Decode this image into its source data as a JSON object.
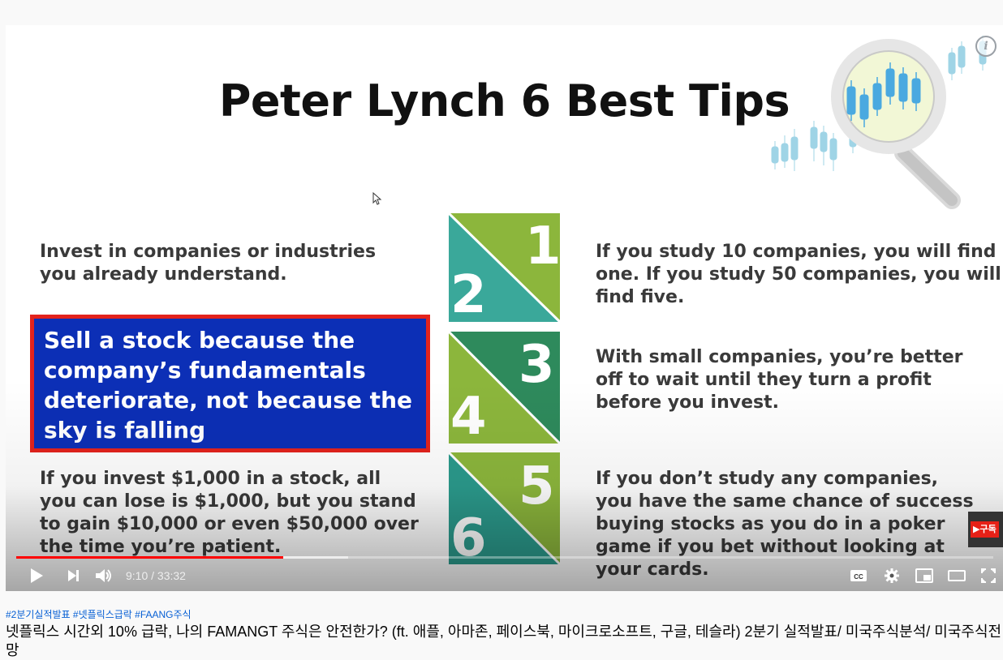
{
  "slide": {
    "title": "Peter Lynch 6 Best Tips",
    "tips": [
      {
        "number": "1",
        "text": "If you study 10 companies, you will find one. If you study 50 companies, you will find five."
      },
      {
        "number": "2",
        "text": "Invest in companies or industries you already understand."
      },
      {
        "number": "3",
        "text": "With small companies, you’re better off to wait until they turn a profit before you invest."
      },
      {
        "number": "4",
        "text": "Sell a stock because the company’s fundamentals deteriorate, not because the sky is falling"
      },
      {
        "number": "5",
        "text": "If you don’t study any companies, you have the same chance of success buying stocks as you do in a poker game if you bet without looking at your cards."
      },
      {
        "number": "6",
        "text": "If you invest $1,000 in a stock, all you can lose is $1,000, but you stand to gain $10,000 or even $50,000 over the time you’re patient."
      }
    ],
    "colors": {
      "highlight_bg": "#0c2fb6",
      "highlight_border": "#e3231d",
      "green_light": "#8cb63c",
      "teal": "#3aa89a",
      "green_dark": "#2e8a5c"
    }
  },
  "player": {
    "info_label": "i",
    "subscribe_label": "▶구독",
    "current_time": "9:10",
    "duration": "33:32",
    "time_display": "9:10 / 33:32",
    "progress_fraction": 0.2734,
    "buffered_fraction": 0.34,
    "icons": [
      "play-icon",
      "next-icon",
      "volume-icon",
      "cc-icon",
      "settings-icon",
      "miniplayer-icon",
      "theater-icon",
      "fullscreen-icon"
    ],
    "progress_color": "#ff0000"
  },
  "video": {
    "hashtags": "#2분기실적발표 #넷플릭스급락 #FAANG주식",
    "title": "넷플릭스 시간외 10% 급락, 나의 FAMANGT 주식은 안전한가? (ft. 애플, 아마존, 페이스북, 마이크로소프트, 구글, 테슬라) 2분기 실적발표/ 미국주식분석/ 미국주식전망"
  }
}
